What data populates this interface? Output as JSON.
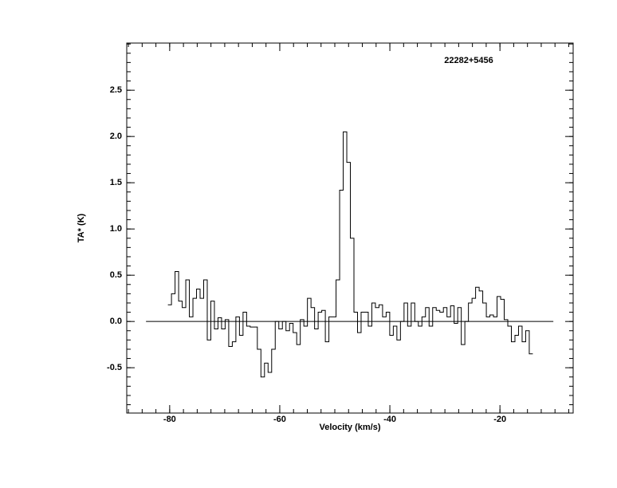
{
  "chart_data": {
    "type": "step",
    "title": "22282+5456",
    "xlabel": "Velocity (km/s)",
    "ylabel": "TA* (K)",
    "color": "#000000",
    "xlim": [
      -87.8,
      -6.7
    ],
    "ylim": [
      -0.99,
      3.01
    ],
    "xticks": [
      -80,
      -60,
      -40,
      -20
    ],
    "yticks": [
      -0.5,
      {
        "value": 0,
        "label": "0.0"
      },
      0.5,
      {
        "value": 1,
        "label": "1.0"
      },
      1.5,
      {
        "value": 2,
        "label": "2.0"
      },
      2.5
    ],
    "x_minor_step": 2.5,
    "y_minor_step": 0.1,
    "baseline": {
      "y": 0,
      "x": [
        -84.3,
        -10.3
      ]
    },
    "x": [
      -80,
      -79.35,
      -78.7,
      -78.05,
      -77.4,
      -76.75,
      -76.1,
      -75.45,
      -74.8,
      -74.15,
      -73.5,
      -72.85,
      -72.2,
      -71.55,
      -70.9,
      -70.25,
      -69.6,
      -68.95,
      -68.3,
      -67.65,
      -67,
      -66.35,
      -65.7,
      -65.05,
      -64.4,
      -63.75,
      -63.1,
      -62.45,
      -61.8,
      -61.15,
      -60.5,
      -59.85,
      -59.2,
      -58.55,
      -57.9,
      -57.25,
      -56.6,
      -55.95,
      -55.3,
      -54.65,
      -54,
      -53.35,
      -52.7,
      -52.05,
      -51.4,
      -50.75,
      -50.1,
      -49.45,
      -48.8,
      -48.15,
      -47.5,
      -46.85,
      -46.2,
      -45.55,
      -44.9,
      -44.25,
      -43.6,
      -42.95,
      -42.3,
      -41.65,
      -41,
      -40.35,
      -39.7,
      -39.05,
      -38.4,
      -37.75,
      -37.1,
      -36.45,
      -35.8,
      -35.15,
      -34.5,
      -33.85,
      -33.2,
      -32.55,
      -31.9,
      -31.25,
      -30.6,
      -29.95,
      -29.3,
      -28.65,
      -28,
      -27.35,
      -26.7,
      -26.05,
      -25.4,
      -24.75,
      -24.1,
      -23.45,
      -22.8,
      -22.15,
      -21.5,
      -20.85,
      -20.2,
      -19.55,
      -18.9,
      -18.25,
      -17.6,
      -16.95,
      -16.3,
      -15.65,
      -15,
      -14.35
    ],
    "values": [
      0.18,
      0.3,
      0.54,
      0.22,
      0.15,
      0.45,
      0.05,
      0.25,
      0.35,
      0.25,
      0.45,
      -0.2,
      0.22,
      -0.08,
      0.04,
      -0.08,
      0.02,
      -0.27,
      -0.22,
      0.05,
      -0.15,
      0.1,
      -0.05,
      -0.06,
      -0.06,
      -0.3,
      -0.6,
      -0.45,
      -0.55,
      -0.3,
      0.0,
      -0.08,
      0.0,
      -0.1,
      -0.02,
      -0.12,
      -0.25,
      0.02,
      -0.05,
      0.25,
      0.15,
      -0.08,
      0.1,
      0.12,
      -0.22,
      0.05,
      0.05,
      0.45,
      1.42,
      2.05,
      1.72,
      0.9,
      0.1,
      -0.12,
      0.1,
      0.1,
      -0.05,
      0.2,
      0.15,
      0.18,
      0.05,
      0.1,
      -0.15,
      -0.05,
      -0.2,
      0.0,
      0.2,
      -0.05,
      0.2,
      0.0,
      -0.05,
      0.05,
      0.15,
      -0.05,
      0.15,
      0.12,
      0.1,
      0.15,
      0.05,
      0.17,
      -0.02,
      0.15,
      -0.25,
      0.0,
      0.2,
      0.25,
      0.37,
      0.33,
      0.2,
      0.05,
      0.07,
      0.05,
      0.27,
      0.24,
      0.02,
      -0.05,
      -0.22,
      -0.15,
      -0.05,
      -0.22,
      -0.1,
      -0.35
    ]
  }
}
